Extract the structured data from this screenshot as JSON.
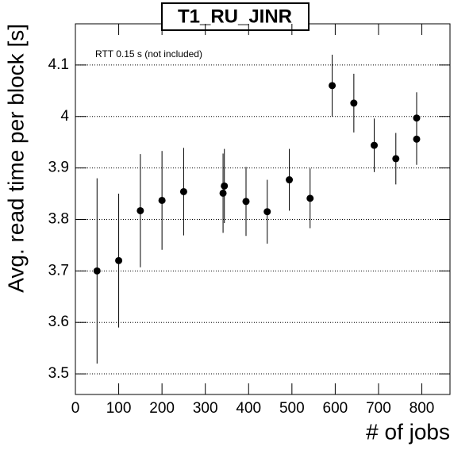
{
  "chart_data": {
    "type": "scatter",
    "title": "T1_RU_JINR",
    "annotation": "RTT 0.15 s (not included)",
    "x_label": "# of jobs",
    "y_label": "Avg. read time per block [s]",
    "x": [
      50,
      100,
      150,
      200,
      250,
      341,
      344,
      394,
      443,
      494,
      542,
      593,
      643,
      690,
      740,
      788,
      788
    ],
    "values": [
      3.7,
      3.72,
      3.817,
      3.837,
      3.854,
      3.851,
      3.865,
      3.835,
      3.815,
      3.877,
      3.841,
      4.06,
      4.026,
      3.944,
      3.918,
      3.956,
      3.997
    ],
    "errors": [
      0.18,
      0.13,
      0.11,
      0.096,
      0.085,
      0.077,
      0.072,
      0.067,
      0.062,
      0.06,
      0.058,
      0.06,
      0.057,
      0.052,
      0.05,
      0.05,
      0.05
    ],
    "color": "#000000",
    "xlim": [
      0,
      865
    ],
    "xticks": [
      0,
      100,
      200,
      300,
      400,
      500,
      600,
      700,
      800
    ],
    "ylim": [
      3.46,
      4.18
    ],
    "yticks": [
      3.5,
      3.6,
      3.7,
      3.8,
      3.9,
      4,
      4.1
    ],
    "grid": true
  }
}
